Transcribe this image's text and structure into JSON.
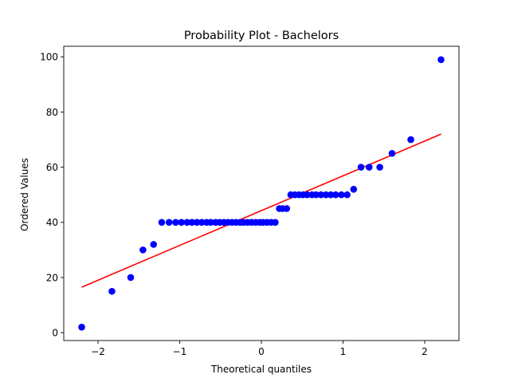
{
  "chart_data": {
    "type": "scatter",
    "title": "Probability Plot - Bachelors",
    "xlabel": "Theoretical quantiles",
    "ylabel": "Ordered Values",
    "xlim": [
      -2.42,
      2.42
    ],
    "ylim": [
      -2.85,
      103.85
    ],
    "xticks": [
      -2,
      -1,
      0,
      1,
      2
    ],
    "xtick_labels": [
      "−2",
      "−1",
      "0",
      "1",
      "2"
    ],
    "yticks": [
      0,
      20,
      40,
      60,
      80,
      100
    ],
    "ytick_labels": [
      "0",
      "20",
      "40",
      "60",
      "80",
      "100"
    ],
    "grid": false,
    "legend": "none",
    "series": [
      {
        "kind": "points",
        "color": "#0000ff",
        "points": [
          [
            -2.2,
            2
          ],
          [
            -1.83,
            15
          ],
          [
            -1.6,
            20
          ],
          [
            -1.45,
            30
          ],
          [
            -1.32,
            32
          ],
          [
            -1.22,
            40
          ],
          [
            -1.13,
            40
          ],
          [
            -1.05,
            40
          ],
          [
            -0.98,
            40
          ],
          [
            -0.91,
            40
          ],
          [
            -0.85,
            40
          ],
          [
            -0.79,
            40
          ],
          [
            -0.73,
            40
          ],
          [
            -0.67,
            40
          ],
          [
            -0.62,
            40
          ],
          [
            -0.56,
            40
          ],
          [
            -0.51,
            40
          ],
          [
            -0.46,
            40
          ],
          [
            -0.41,
            40
          ],
          [
            -0.36,
            40
          ],
          [
            -0.31,
            40
          ],
          [
            -0.26,
            40
          ],
          [
            -0.22,
            40
          ],
          [
            -0.17,
            40
          ],
          [
            -0.12,
            40
          ],
          [
            -0.07,
            40
          ],
          [
            -0.02,
            40
          ],
          [
            0.02,
            40
          ],
          [
            0.07,
            40
          ],
          [
            0.12,
            40
          ],
          [
            0.17,
            40
          ],
          [
            0.22,
            45
          ],
          [
            0.26,
            45
          ],
          [
            0.31,
            45
          ],
          [
            0.36,
            50
          ],
          [
            0.41,
            50
          ],
          [
            0.46,
            50
          ],
          [
            0.51,
            50
          ],
          [
            0.56,
            50
          ],
          [
            0.62,
            50
          ],
          [
            0.67,
            50
          ],
          [
            0.73,
            50
          ],
          [
            0.79,
            50
          ],
          [
            0.85,
            50
          ],
          [
            0.91,
            50
          ],
          [
            0.98,
            50
          ],
          [
            1.05,
            50
          ],
          [
            1.13,
            52
          ],
          [
            1.22,
            60
          ],
          [
            1.32,
            60
          ],
          [
            1.45,
            60
          ],
          [
            1.6,
            65
          ],
          [
            1.83,
            70
          ],
          [
            2.2,
            99
          ]
        ]
      },
      {
        "kind": "fit_line",
        "color": "#ff0000",
        "x": [
          -2.2,
          2.2
        ],
        "y": [
          16.5,
          72
        ]
      }
    ]
  }
}
